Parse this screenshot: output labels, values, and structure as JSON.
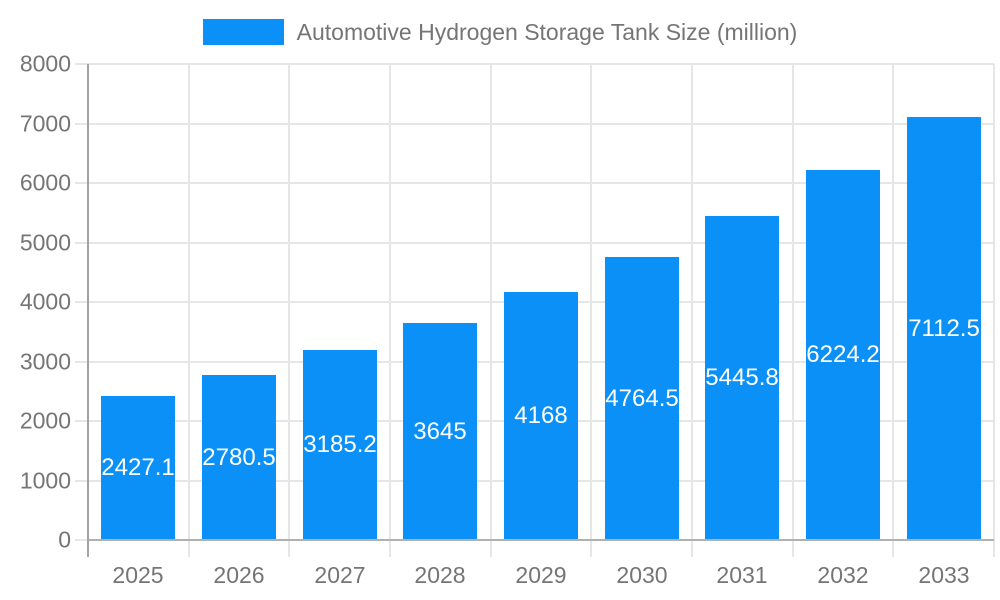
{
  "chart_data": {
    "type": "bar",
    "title": "Automotive Hydrogen Storage Tank Size (million)",
    "legend": {
      "label": "Automotive Hydrogen Storage Tank Size (million)",
      "position": "top-center"
    },
    "categories": [
      "2025",
      "2026",
      "2027",
      "2028",
      "2029",
      "2030",
      "2031",
      "2032",
      "2033"
    ],
    "series": [
      {
        "name": "Automotive Hydrogen Storage Tank Size (million)",
        "values": [
          2427.1,
          2780.5,
          3185.2,
          3645,
          4168,
          4764.5,
          5445.8,
          6224.2,
          7112.5
        ],
        "value_labels": [
          "2427.1",
          "2780.5",
          "3185.2",
          "3645",
          "4168",
          "4764.5",
          "5445.8",
          "6224.2",
          "7112.5"
        ]
      }
    ],
    "xlabel": "",
    "ylabel": "",
    "ylim": [
      0,
      8000
    ],
    "ytick_step": 1000,
    "ytick_labels": [
      "0",
      "1000",
      "2000",
      "3000",
      "4000",
      "5000",
      "6000",
      "7000",
      "8000"
    ],
    "grid": "horizontal and vertical gridlines on",
    "value_label_position": "inside-center",
    "colors": {
      "bar": "#0b90f8",
      "value_label_text": "#ffffff",
      "axis_text": "#757575",
      "legend_text": "#757575",
      "gridline": "#e6e6e6",
      "x_axis_line": "#b0b0b0",
      "y_axis_line": "#a3a3a3",
      "background": "#ffffff"
    }
  }
}
